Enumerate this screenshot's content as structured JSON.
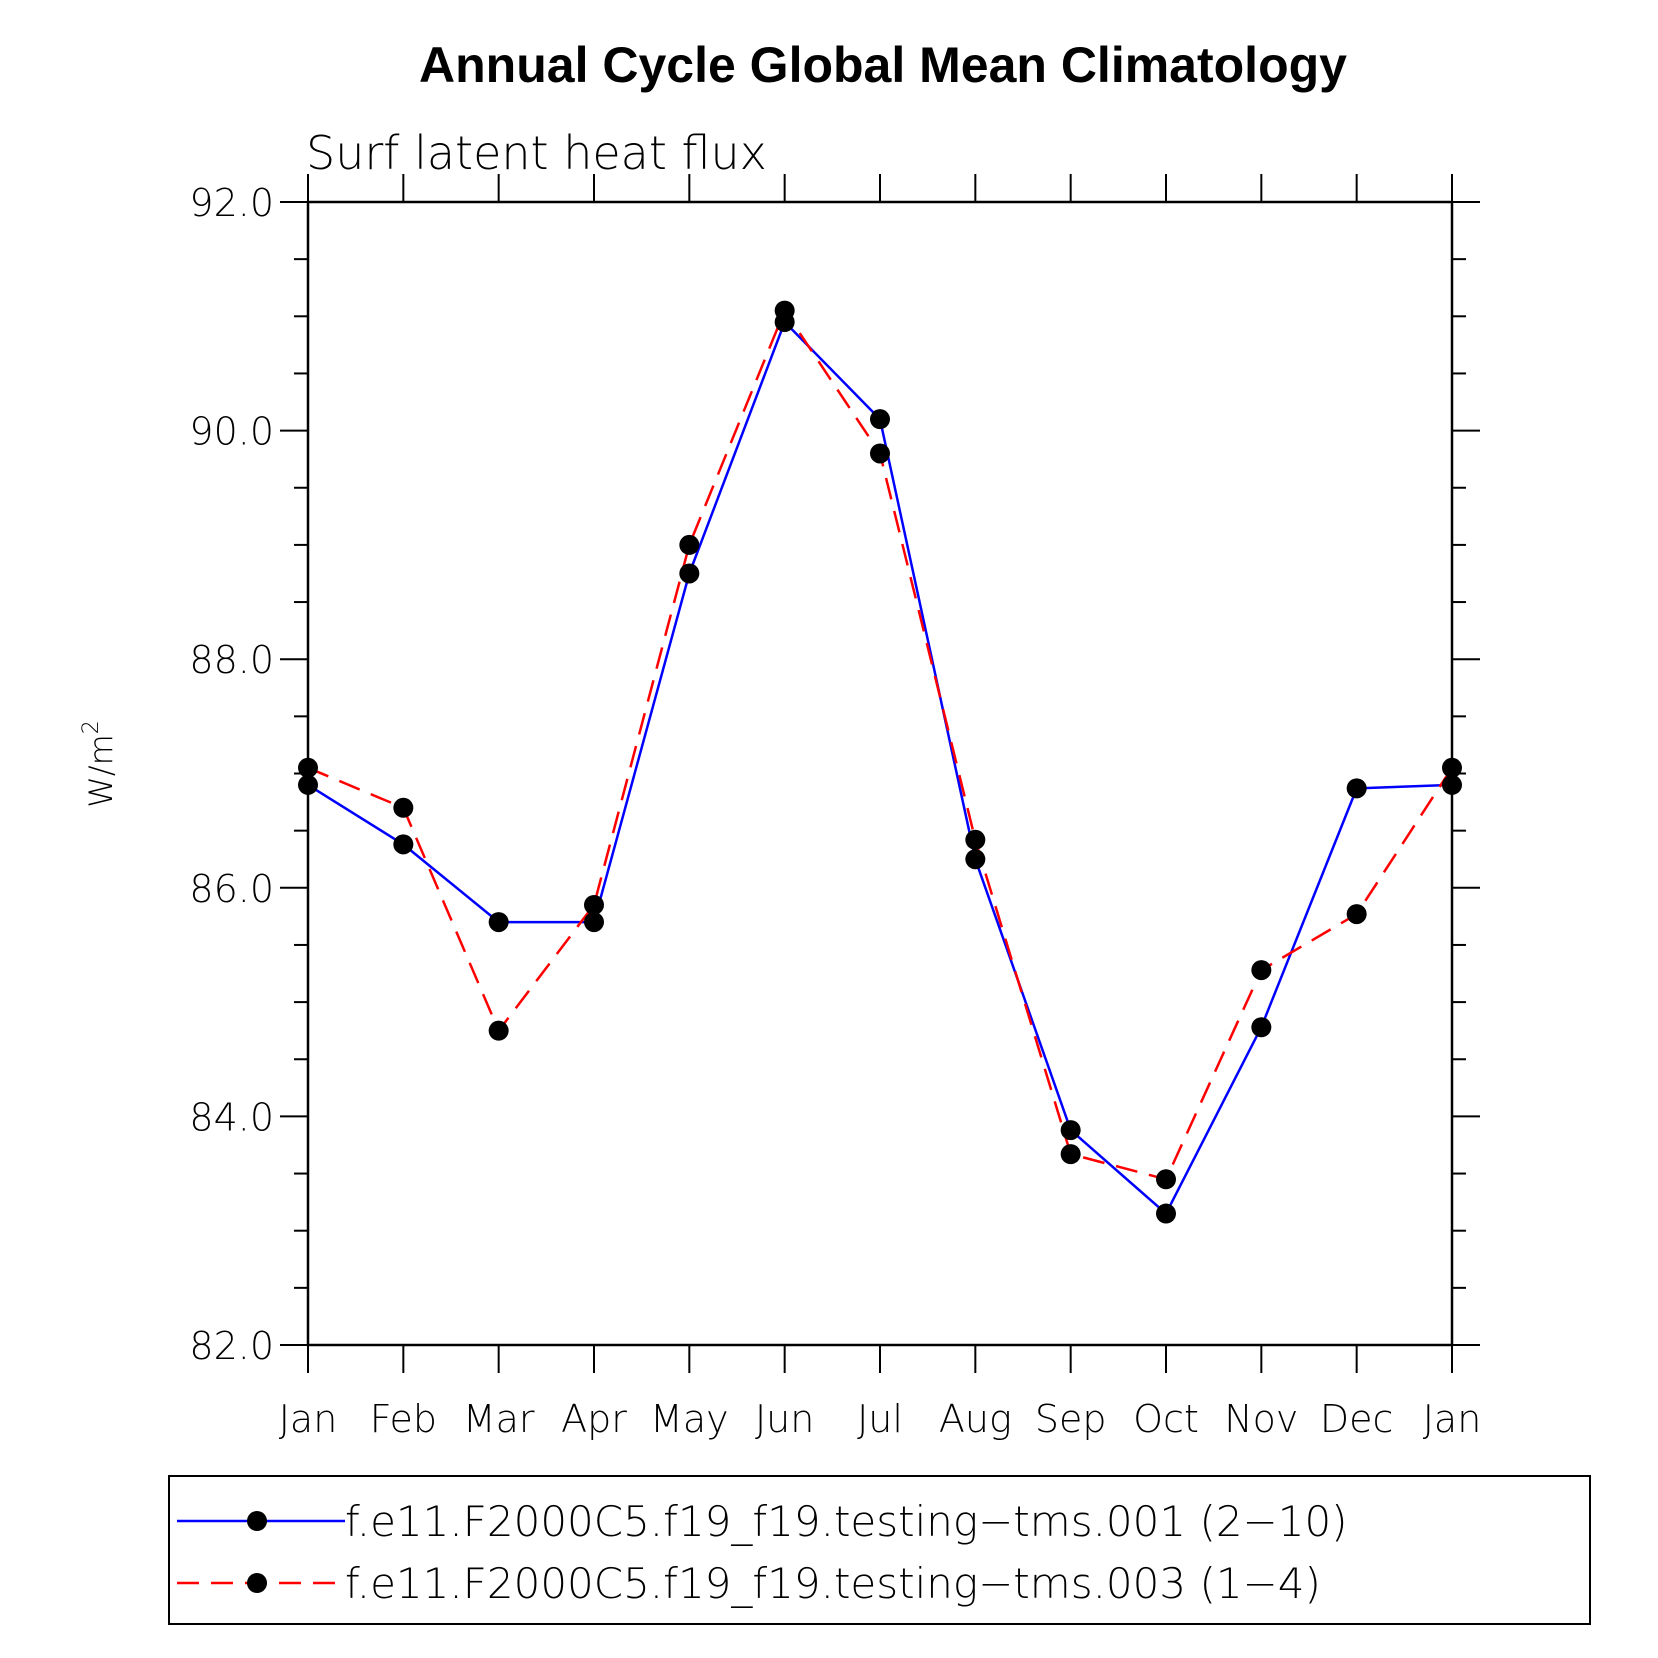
{
  "chart_data": {
    "type": "line",
    "title": "Annual Cycle Global Mean Climatology",
    "subtitle": "Surf latent heat flux",
    "ylabel": "W/m",
    "ylabel_superscript": "2",
    "xlabel": "",
    "categories": [
      "Jan",
      "Feb",
      "Mar",
      "Apr",
      "May",
      "Jun",
      "Jul",
      "Aug",
      "Sep",
      "Oct",
      "Nov",
      "Dec",
      "Jan"
    ],
    "ylim": [
      82.0,
      92.0
    ],
    "yticks": [
      "82.0",
      "84.0",
      "86.0",
      "88.0",
      "90.0",
      "92.0"
    ],
    "grid": false,
    "legend_position": "bottom",
    "series": [
      {
        "name": "f.e11.F2000C5.f19_f19.testing−tms.001 (2−10)",
        "color": "#0000ff",
        "style": "solid",
        "marker": "filled-circle",
        "values": [
          86.9,
          86.38,
          85.7,
          85.7,
          88.75,
          90.95,
          90.1,
          86.25,
          83.88,
          83.15,
          84.78,
          86.87,
          86.9
        ]
      },
      {
        "name": "f.e11.F2000C5.f19_f19.testing−tms.003 (1−4)",
        "color": "#ff0000",
        "style": "dashed",
        "marker": "filled-circle",
        "values": [
          87.05,
          86.7,
          84.75,
          85.85,
          89.0,
          91.05,
          89.8,
          86.42,
          83.67,
          83.45,
          85.28,
          85.77,
          87.05
        ]
      }
    ]
  }
}
